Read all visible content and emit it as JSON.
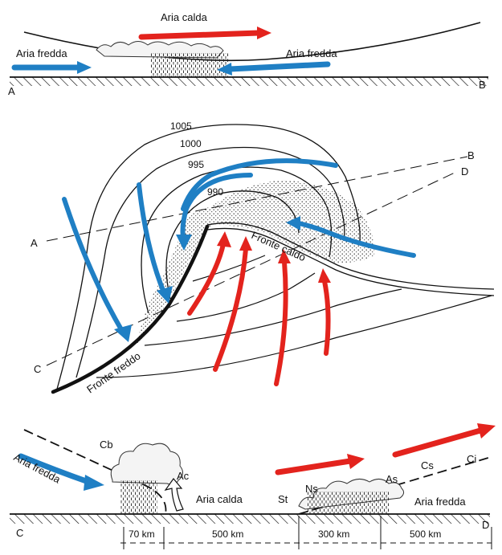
{
  "colors": {
    "warm_air": "#e3231d",
    "cold_air": "#1f7fc4",
    "ink": "#111111",
    "background": "#ffffff"
  },
  "top_section": {
    "warm_air_label": "Aria calda",
    "cold_air_left_label": "Aria fredda",
    "cold_air_right_label": "Aria fredda",
    "point_a": "A",
    "point_b": "B"
  },
  "map_section": {
    "isobars": [
      "1005",
      "1000",
      "995",
      "990"
    ],
    "warm_front_label": "Fronte caldo",
    "cold_front_label": "Fronte freddo",
    "point_a": "A",
    "point_b": "B",
    "point_c": "C",
    "point_d": "D"
  },
  "bottom_section": {
    "cold_air_left_label": "Aria fredda",
    "warm_air_label": "Aria calda",
    "cold_air_right_label": "Aria fredda",
    "clouds": [
      "Cb",
      "Ac",
      "St",
      "Ns",
      "As",
      "Cs",
      "Ci"
    ],
    "distances": [
      "70 km",
      "500 km",
      "300 km",
      "500 km"
    ],
    "point_c": "C",
    "point_d": "D"
  }
}
